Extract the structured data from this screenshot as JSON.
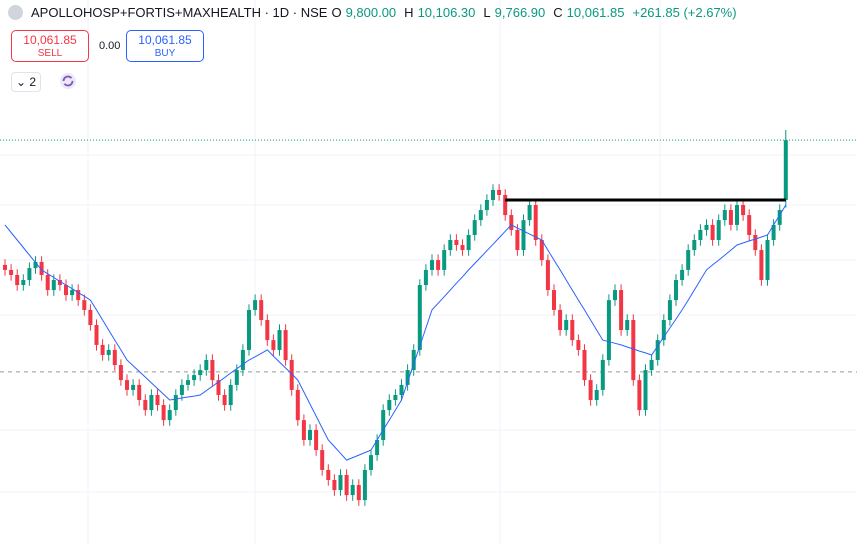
{
  "header": {
    "title": "APOLLOHOSP+FORTIS+MAXHEALTH · 1D · NSE",
    "ohlc": [
      {
        "label": "O",
        "value": "9,800.00"
      },
      {
        "label": "H",
        "value": "10,106.30"
      },
      {
        "label": "L",
        "value": "9,766.90"
      },
      {
        "label": "C",
        "value": "10,061.85"
      }
    ],
    "change": "+261.85 (+2.67%)"
  },
  "trade": {
    "sell_price": "10,061.85",
    "sell_label": "SELL",
    "spread": "0.00",
    "buy_price": "10,061.85",
    "buy_label": "BUY"
  },
  "indicator_count": "2",
  "chart_data": {
    "type": "candlestick",
    "up_color": "#089981",
    "down_color": "#f23645",
    "ylim": [
      8295,
      10675
    ],
    "open": [
      9516,
      9494,
      9472,
      9428,
      9450,
      9502,
      9529,
      9472,
      9406,
      9450,
      9428,
      9384,
      9406,
      9362,
      9319,
      9253,
      9166,
      9122,
      9144,
      9078,
      9012,
      8969,
      8991,
      8925,
      8881,
      8947,
      8903,
      8837,
      8881,
      8947,
      8991,
      9012,
      9034,
      9056,
      9100,
      9012,
      8947,
      8903,
      8991,
      9056,
      9144,
      9319,
      9362,
      9275,
      9187,
      9144,
      9231,
      9100,
      8969,
      8837,
      8750,
      8794,
      8706,
      8619,
      8575,
      8531,
      8597,
      8509,
      8553,
      8487,
      8619,
      8684,
      8750,
      8881,
      8925,
      8947,
      8991,
      9056,
      9144,
      9428,
      9494,
      9537,
      9494,
      9581,
      9625,
      9603,
      9581,
      9647,
      9712,
      9756,
      9800,
      9844,
      9822,
      9734,
      9669,
      9581,
      9712,
      9778,
      9625,
      9537,
      9406,
      9319,
      9231,
      9275,
      9187,
      9144,
      9012,
      8925,
      8969,
      9100,
      9362,
      9406,
      9231,
      9275,
      9012,
      8881,
      9056,
      9100,
      9187,
      9275,
      9362,
      9450,
      9494,
      9581,
      9625,
      9669,
      9691,
      9625,
      9712,
      9756,
      9691,
      9778,
      9734,
      9647,
      9581,
      9450,
      9625,
      9691,
      9800
    ],
    "high": [
      9541,
      9519,
      9497,
      9475,
      9527,
      9554,
      9554,
      9497,
      9475,
      9475,
      9453,
      9431,
      9431,
      9387,
      9344,
      9278,
      9191,
      9169,
      9169,
      9103,
      9037,
      9016,
      9016,
      8950,
      8972,
      8972,
      8928,
      8906,
      8972,
      9016,
      9037,
      9059,
      9081,
      9125,
      9125,
      9037,
      8972,
      9016,
      9081,
      9169,
      9344,
      9387,
      9387,
      9300,
      9212,
      9256,
      9256,
      9125,
      8994,
      8862,
      8819,
      8819,
      8731,
      8644,
      8600,
      8622,
      8622,
      8578,
      8578,
      8644,
      8709,
      8775,
      8906,
      8950,
      8972,
      9016,
      9081,
      9169,
      9453,
      9519,
      9562,
      9562,
      9606,
      9650,
      9650,
      9628,
      9672,
      9737,
      9781,
      9825,
      9869,
      9869,
      9847,
      9759,
      9694,
      9737,
      9803,
      9803,
      9650,
      9562,
      9431,
      9344,
      9300,
      9300,
      9212,
      9169,
      9037,
      8994,
      9125,
      9387,
      9431,
      9431,
      9300,
      9300,
      9037,
      9081,
      9125,
      9212,
      9300,
      9387,
      9475,
      9519,
      9606,
      9650,
      9694,
      9716,
      9716,
      9737,
      9781,
      9781,
      9803,
      9803,
      9759,
      9672,
      9606,
      9650,
      9716,
      9781,
      10106.3
    ],
    "low": [
      9469,
      9447,
      9403,
      9403,
      9425,
      9477,
      9447,
      9381,
      9381,
      9403,
      9359,
      9359,
      9337,
      9294,
      9228,
      9141,
      9097,
      9097,
      9053,
      8987,
      8944,
      8944,
      8900,
      8856,
      8856,
      8878,
      8812,
      8812,
      8856,
      8922,
      8966,
      8987,
      9009,
      9031,
      8987,
      8922,
      8878,
      8878,
      8966,
      9031,
      9119,
      9294,
      9250,
      9162,
      9119,
      9119,
      9075,
      8944,
      8812,
      8725,
      8725,
      8681,
      8594,
      8550,
      8506,
      8506,
      8484,
      8484,
      8462,
      8462,
      8594,
      8659,
      8725,
      8856,
      8900,
      8922,
      8966,
      9031,
      9119,
      9403,
      9469,
      9469,
      9469,
      9556,
      9578,
      9556,
      9556,
      9622,
      9687,
      9731,
      9775,
      9797,
      9709,
      9644,
      9556,
      9556,
      9687,
      9600,
      9512,
      9381,
      9294,
      9206,
      9206,
      9162,
      9119,
      8987,
      8900,
      8900,
      8944,
      9075,
      9337,
      9206,
      9206,
      8987,
      8856,
      8856,
      9031,
      9075,
      9162,
      9250,
      9337,
      9425,
      9469,
      9556,
      9600,
      9644,
      9600,
      9600,
      9687,
      9666,
      9666,
      9709,
      9622,
      9556,
      9425,
      9425,
      9600,
      9666,
      9766.9
    ],
    "close": [
      9494,
      9472,
      9428,
      9450,
      9502,
      9529,
      9472,
      9406,
      9450,
      9428,
      9384,
      9406,
      9362,
      9319,
      9253,
      9166,
      9122,
      9144,
      9078,
      9012,
      8969,
      8991,
      8925,
      8881,
      8947,
      8903,
      8837,
      8881,
      8947,
      8991,
      9012,
      9034,
      9056,
      9100,
      9012,
      8947,
      8903,
      8991,
      9056,
      9144,
      9319,
      9362,
      9275,
      9187,
      9144,
      9231,
      9100,
      8969,
      8837,
      8750,
      8794,
      8706,
      8619,
      8575,
      8531,
      8597,
      8509,
      8553,
      8487,
      8619,
      8684,
      8750,
      8881,
      8925,
      8947,
      8991,
      9056,
      9144,
      9428,
      9494,
      9537,
      9494,
      9581,
      9625,
      9603,
      9581,
      9647,
      9712,
      9756,
      9800,
      9844,
      9822,
      9734,
      9669,
      9581,
      9712,
      9778,
      9625,
      9537,
      9406,
      9319,
      9231,
      9275,
      9187,
      9144,
      9012,
      8925,
      8969,
      9100,
      9362,
      9406,
      9231,
      9275,
      9012,
      8881,
      9056,
      9100,
      9187,
      9275,
      9362,
      9450,
      9494,
      9581,
      9625,
      9669,
      9691,
      9625,
      9712,
      9756,
      9691,
      9778,
      9734,
      9647,
      9581,
      9450,
      9625,
      9691,
      9756,
      10061.85
    ],
    "ma": {
      "color": "#2962ff",
      "values": [
        9691,
        9658,
        9625,
        9592,
        9559,
        9527,
        9494,
        9477,
        9461,
        9444,
        9428,
        9412,
        9395,
        9379,
        9362,
        9319,
        9275,
        9231,
        9187,
        9144,
        9100,
        9075,
        9050,
        9025,
        9000,
        8975,
        8950,
        8925,
        8929,
        8934,
        8938,
        8942,
        8947,
        8966,
        8985,
        9004,
        9023,
        9043,
        9062,
        9081,
        9100,
        9114,
        9129,
        9144,
        9117,
        9091,
        9065,
        9039,
        9012,
        8960,
        8907,
        8855,
        8802,
        8750,
        8721,
        8692,
        8662,
        8673,
        8684,
        8695,
        8706,
        8750,
        8794,
        8837,
        8881,
        8925,
        9004,
        9083,
        9161,
        9240,
        9319,
        9348,
        9377,
        9406,
        9436,
        9464,
        9494,
        9522,
        9550,
        9578,
        9606,
        9634,
        9663,
        9691,
        9677,
        9664,
        9651,
        9638,
        9625,
        9581,
        9537,
        9494,
        9450,
        9406,
        9362,
        9319,
        9275,
        9231,
        9187,
        9180,
        9173,
        9166,
        9157,
        9148,
        9139,
        9131,
        9122,
        9161,
        9201,
        9240,
        9279,
        9319,
        9362,
        9406,
        9450,
        9494,
        9516,
        9537,
        9559,
        9581,
        9603,
        9612,
        9621,
        9629,
        9638,
        9647,
        9691,
        9734,
        9778
      ]
    },
    "trendline": {
      "value": 9800,
      "from": 82,
      "to": 128,
      "color": "#000000"
    },
    "reference_line": {
      "value": 9048,
      "color": "#9598a1"
    },
    "last_price_color": "#089981"
  }
}
